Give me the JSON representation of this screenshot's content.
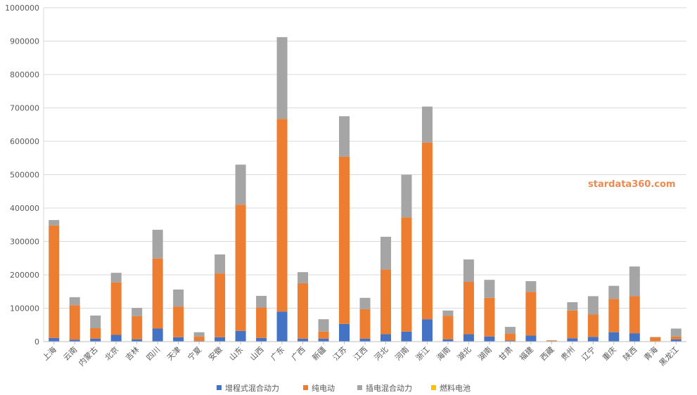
{
  "chart_data": {
    "type": "bar",
    "stacked": true,
    "title": "",
    "xlabel": "",
    "ylabel": "",
    "ylim": [
      0,
      1000000
    ],
    "yticks": [
      0,
      100000,
      200000,
      300000,
      400000,
      500000,
      600000,
      700000,
      800000,
      900000,
      1000000
    ],
    "grid": true,
    "legend_position": "bottom",
    "watermark": "stardata360.com",
    "categories": [
      "上海",
      "云南",
      "内蒙古",
      "北京",
      "吉林",
      "四川",
      "天津",
      "宁夏",
      "安徽",
      "山东",
      "山西",
      "广东",
      "广西",
      "新疆",
      "江苏",
      "江西",
      "河北",
      "河南",
      "浙江",
      "海南",
      "湖北",
      "湖南",
      "甘肃",
      "福建",
      "西藏",
      "贵州",
      "辽宁",
      "重庆",
      "陕西",
      "青海",
      "黑龙江"
    ],
    "series": [
      {
        "name": "增程式混合动力",
        "color": "#4472c4",
        "values": [
          11000,
          6000,
          9000,
          20000,
          7000,
          39000,
          13000,
          2000,
          13000,
          32000,
          11000,
          90000,
          9000,
          9000,
          53000,
          9000,
          22000,
          30000,
          67000,
          7000,
          22000,
          15000,
          3000,
          18000,
          1000,
          10000,
          14000,
          28000,
          25000,
          1000,
          7000
        ]
      },
      {
        "name": "纯电动",
        "color": "#ed7d31",
        "values": [
          337000,
          103000,
          31000,
          157000,
          69000,
          210000,
          92000,
          13000,
          191000,
          378000,
          91000,
          577000,
          166000,
          21000,
          501000,
          88000,
          194000,
          342000,
          529000,
          70000,
          157000,
          116000,
          21000,
          131000,
          2000,
          83000,
          67000,
          100000,
          111000,
          12000,
          8000
        ]
      },
      {
        "name": "插电混合动力",
        "color": "#a5a5a5",
        "values": [
          16000,
          24000,
          38000,
          29000,
          25000,
          86000,
          51000,
          13000,
          57000,
          120000,
          35000,
          245000,
          33000,
          37000,
          121000,
          34000,
          98000,
          128000,
          108000,
          16000,
          67000,
          54000,
          20000,
          32000,
          1000,
          25000,
          55000,
          39000,
          89000,
          1000,
          24000
        ]
      },
      {
        "name": "燃料电池",
        "color": "#ffc000",
        "values": [
          0,
          0,
          0,
          0,
          0,
          0,
          0,
          0,
          0,
          0,
          0,
          0,
          0,
          0,
          0,
          0,
          0,
          0,
          0,
          0,
          0,
          0,
          0,
          0,
          0,
          0,
          0,
          0,
          0,
          0,
          0
        ]
      }
    ]
  }
}
